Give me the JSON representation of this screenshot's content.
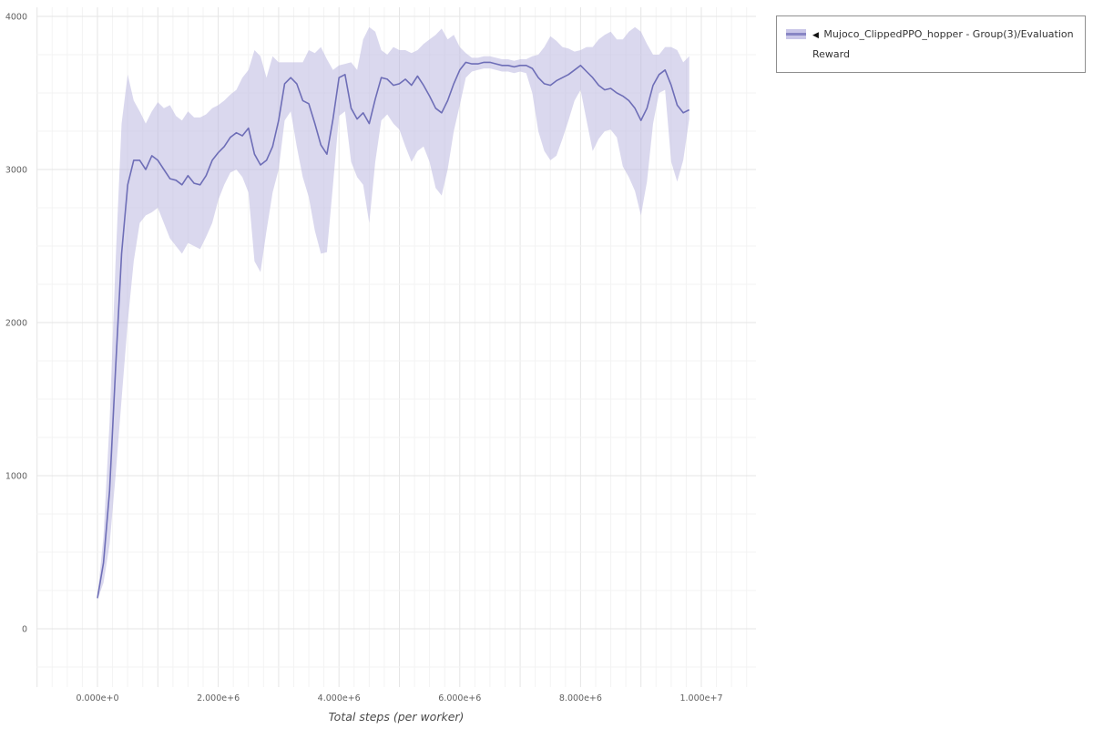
{
  "legend": {
    "marker": "◀",
    "label": "Mujoco_ClippedPPO_hopper - Group(3)/Evaluation Reward"
  },
  "axes": {
    "xlabel": "Total steps (per worker)",
    "x_tick_labels": [
      "0.000e+0",
      "2.000e+6",
      "4.000e+6",
      "6.000e+6",
      "8.000e+6",
      "1.000e+7"
    ],
    "x_tick_values": [
      0,
      2000000,
      4000000,
      6000000,
      8000000,
      10000000
    ],
    "y_tick_labels": [
      "0",
      "1000",
      "2000",
      "3000",
      "4000"
    ],
    "y_tick_values": [
      0,
      1000,
      2000,
      3000,
      4000
    ]
  },
  "colors": {
    "line": "#6e6eb7",
    "band": "#bcb8e0",
    "band_opacity": 0.55,
    "grid_minor": "#f3f3f3",
    "grid_major": "#e5e5e5",
    "tick_text": "#616161",
    "axis_title": "#4a4a4a"
  },
  "chart_data": {
    "type": "line",
    "title": "",
    "xlabel": "Total steps (per worker)",
    "ylabel": "",
    "xlim": [
      0,
      10000000
    ],
    "ylim": [
      0,
      4000
    ],
    "grid": true,
    "legend_position": "top-right",
    "series": [
      {
        "name": "Mujoco_ClippedPPO_hopper - Group(3)/Evaluation Reward",
        "x_start": 0,
        "x_step": 100000,
        "mean": [
          200,
          430,
          900,
          1700,
          2450,
          2900,
          3060,
          3060,
          3000,
          3090,
          3060,
          3000,
          2940,
          2930,
          2900,
          2960,
          2910,
          2900,
          2960,
          3060,
          3110,
          3150,
          3210,
          3240,
          3220,
          3270,
          3100,
          3030,
          3060,
          3150,
          3320,
          3560,
          3600,
          3560,
          3450,
          3430,
          3300,
          3160,
          3100,
          3330,
          3600,
          3620,
          3400,
          3330,
          3370,
          3300,
          3460,
          3600,
          3590,
          3550,
          3560,
          3590,
          3550,
          3610,
          3550,
          3480,
          3400,
          3370,
          3450,
          3560,
          3650,
          3700,
          3690,
          3690,
          3700,
          3700,
          3690,
          3680,
          3680,
          3670,
          3680,
          3680,
          3660,
          3600,
          3560,
          3550,
          3580,
          3600,
          3620,
          3650,
          3680,
          3640,
          3600,
          3550,
          3520,
          3530,
          3500,
          3480,
          3450,
          3400,
          3320,
          3400,
          3550,
          3620,
          3650,
          3550,
          3420,
          3370,
          3390
        ],
        "low": [
          190,
          300,
          550,
          1000,
          1500,
          2000,
          2400,
          2650,
          2700,
          2720,
          2750,
          2650,
          2550,
          2500,
          2450,
          2520,
          2500,
          2480,
          2560,
          2650,
          2800,
          2900,
          2980,
          3000,
          2950,
          2850,
          2400,
          2330,
          2600,
          2850,
          3000,
          3320,
          3380,
          3150,
          2950,
          2820,
          2600,
          2450,
          2460,
          2900,
          3350,
          3380,
          3050,
          2950,
          2900,
          2650,
          3050,
          3320,
          3360,
          3300,
          3260,
          3150,
          3050,
          3120,
          3150,
          3050,
          2880,
          2830,
          3000,
          3250,
          3420,
          3600,
          3640,
          3650,
          3660,
          3660,
          3650,
          3640,
          3640,
          3630,
          3640,
          3630,
          3500,
          3250,
          3120,
          3060,
          3090,
          3200,
          3320,
          3450,
          3520,
          3320,
          3120,
          3200,
          3250,
          3260,
          3210,
          3020,
          2950,
          2860,
          2700,
          2920,
          3300,
          3500,
          3520,
          3050,
          2920,
          3060,
          3330
        ],
        "high": [
          210,
          600,
          1350,
          2400,
          3300,
          3620,
          3450,
          3380,
          3300,
          3380,
          3440,
          3400,
          3420,
          3350,
          3320,
          3380,
          3340,
          3340,
          3360,
          3400,
          3420,
          3450,
          3490,
          3520,
          3600,
          3650,
          3780,
          3740,
          3600,
          3740,
          3700,
          3700,
          3700,
          3700,
          3700,
          3780,
          3760,
          3800,
          3720,
          3650,
          3680,
          3690,
          3700,
          3650,
          3850,
          3930,
          3900,
          3780,
          3750,
          3800,
          3780,
          3780,
          3760,
          3780,
          3820,
          3850,
          3880,
          3920,
          3850,
          3880,
          3800,
          3760,
          3730,
          3730,
          3740,
          3740,
          3730,
          3720,
          3720,
          3710,
          3720,
          3720,
          3740,
          3750,
          3800,
          3870,
          3840,
          3800,
          3790,
          3770,
          3780,
          3800,
          3800,
          3850,
          3880,
          3900,
          3850,
          3850,
          3900,
          3930,
          3900,
          3820,
          3750,
          3750,
          3800,
          3800,
          3780,
          3700,
          3740
        ]
      }
    ]
  }
}
